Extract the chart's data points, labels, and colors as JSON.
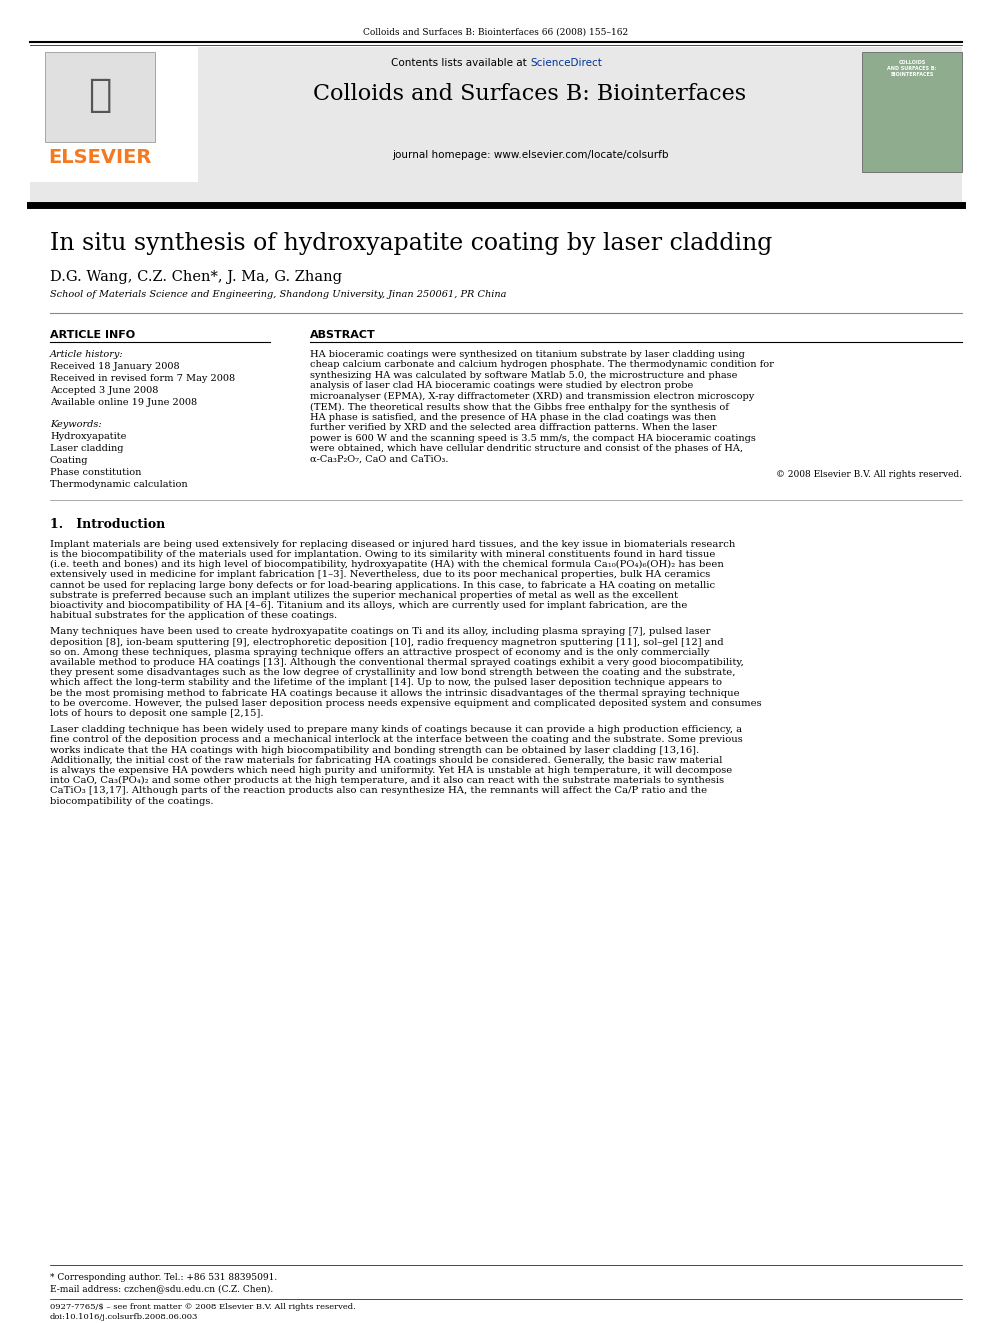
{
  "page_header": "Colloids and Surfaces B: Biointerfaces 66 (2008) 155–162",
  "journal_name": "Colloids and Surfaces B: Biointerfaces",
  "contents_line": "Contents lists available at ScienceDirect",
  "journal_homepage": "journal homepage: www.elsevier.com/locate/colsurfb",
  "elsevier_text": "ELSEVIER",
  "article_title": "In situ synthesis of hydroxyapatite coating by laser cladding",
  "authors": "D.G. Wang, C.Z. Chen*, J. Ma, G. Zhang",
  "affiliation": "School of Materials Science and Engineering, Shandong University, Jinan 250061, PR China",
  "article_info_header": "ARTICLE INFO",
  "article_history_label": "Article history:",
  "received": "Received 18 January 2008",
  "revised": "Received in revised form 7 May 2008",
  "accepted": "Accepted 3 June 2008",
  "available": "Available online 19 June 2008",
  "keywords_label": "Keywords:",
  "keyword1": "Hydroxyapatite",
  "keyword2": "Laser cladding",
  "keyword3": "Coating",
  "keyword4": "Phase constitution",
  "keyword5": "Thermodynamic calculation",
  "abstract_header": "ABSTRACT",
  "abstract_text": "HA bioceramic coatings were synthesized on titanium substrate by laser cladding using cheap calcium carbonate and calcium hydrogen phosphate. The thermodynamic condition for synthesizing HA was calculated by software Matlab 5.0, the microstructure and phase analysis of laser clad HA bioceramic coatings were studied by electron probe microanalyser (EPMA), X-ray diffractometer (XRD) and transmission electron microscopy (TEM). The theoretical results show that the Gibbs free enthalpy for the synthesis of HA phase is satisfied, and the presence of HA phase in the clad coatings was then further verified by XRD and the selected area diffraction patterns. When the laser power is 600 W and the scanning speed is 3.5 mm/s, the compact HA bioceramic coatings were obtained, which have cellular dendritic structure and consist of the phases of HA, α-Ca₃P₂O₇, CaO and CaTiO₃.",
  "copyright": "© 2008 Elsevier B.V. All rights reserved.",
  "section1_header": "1.   Introduction",
  "intro_para1": "Implant materials are being used extensively for replacing diseased or injured hard tissues, and the key issue in biomaterials research is the biocompatibility of the materials used for implantation. Owing to its similarity with mineral constituents found in hard tissue (i.e. teeth and bones) and its high level of biocompatibility, hydroxyapatite (HA) with the chemical formula Ca₁₀(PO₄)₆(OH)₂ has been extensively used in medicine for implant fabrication [1–3]. Nevertheless, due to its poor mechanical properties, bulk HA ceramics cannot be used for replacing large bony defects or for load-bearing applications. In this case, to fabricate a HA coating on metallic substrate is preferred because such an implant utilizes the superior mechanical properties of metal as well as the excellent bioactivity and biocompatibility of HA [4–6]. Titanium and its alloys, which are currently used for implant fabrication, are the habitual substrates for the application of these coatings.",
  "intro_para2": "Many techniques have been used to create hydroxyapatite coatings on Ti and its alloy, including plasma spraying [7], pulsed laser deposition [8], ion-beam sputtering [9], electrophoretic deposition [10], radio frequency magnetron sputtering [11], sol–gel [12] and so on. Among these techniques, plasma spraying technique offers an attractive prospect of economy and is the only commercially available method to produce HA coatings [13]. Although the conventional thermal sprayed coatings exhibit a very good biocompatibility, they present some disadvantages such as the low degree of crystallinity and low bond strength between the coating and the substrate, which affect the long-term stability and the lifetime of the implant [14]. Up to now, the pulsed laser deposition technique appears to be the most promising method to fabricate HA coatings because it allows the intrinsic disadvantages of the thermal spraying technique to be overcome. However, the pulsed laser deposition process needs expensive equipment and complicated deposited system and consumes lots of hours to deposit one sample [2,15].",
  "intro_para3": "Laser cladding technique has been widely used to prepare many kinds of coatings because it can provide a high production efficiency, a fine control of the deposition process and a mechanical interlock at the interface between the coating and the substrate. Some previous works indicate that the HA coatings with high biocompatibility and bonding strength can be obtained by laser cladding [13,16]. Additionally, the initial cost of the raw materials for fabricating HA coatings should be considered. Generally, the basic raw material is always the expensive HA powders which need high purity and uniformity. Yet HA is unstable at high temperature, it will decompose into CaO, Ca₃(PO₄)₂ and some other products at the high temperature, and it also can react with the substrate materials to synthesis CaTiO₃ [13,17]. Although parts of the reaction products also can resynthesize HA, the remnants will affect the Ca/P ratio and the biocompatibility of the coatings.",
  "footnote_star": "* Corresponding author. Tel.: +86 531 88395091.",
  "footnote_email": "E-mail address: czchen@sdu.edu.cn (C.Z. Chen).",
  "footnote_issn": "0927-7765/$ – see front matter © 2008 Elsevier B.V. All rights reserved.",
  "footnote_doi": "doi:10.1016/j.colsurfb.2008.06.003",
  "bg_color": "#ffffff",
  "header_bg": "#e8e8e8",
  "elsevier_orange": "#f47920",
  "sciencedirect_blue": "#003399",
  "dark_line": "#1a1a1a"
}
